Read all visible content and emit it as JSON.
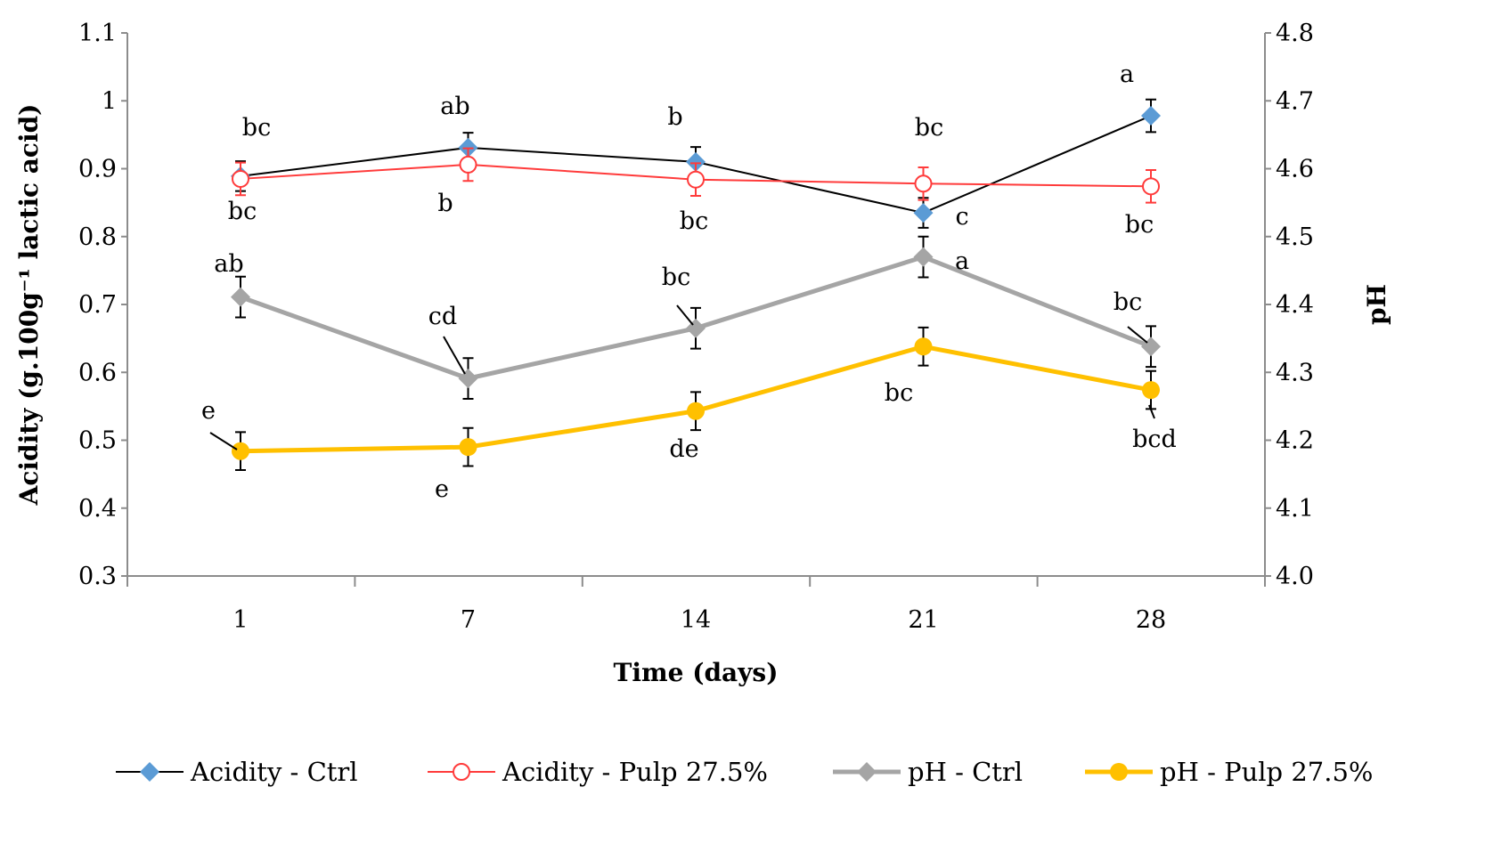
{
  "chart_data": {
    "type": "line",
    "xlabel": "Time (days)",
    "ylabel": "Acidity (g.100g⁻¹ lactic acid)",
    "y2label": "pH",
    "categories": [
      "1",
      "7",
      "14",
      "21",
      "28"
    ],
    "ylim": [
      0.3,
      1.1
    ],
    "yticks": [
      "0.3",
      "0.4",
      "0.5",
      "0.6",
      "0.7",
      "0.8",
      "0.9",
      "1",
      "1.1"
    ],
    "y2lim": [
      4.0,
      4.8
    ],
    "y2ticks": [
      "4.0",
      "4.1",
      "4.2",
      "4.3",
      "4.4",
      "4.5",
      "4.6",
      "4.7",
      "4.8"
    ],
    "grid": false,
    "legend_position": "bottom",
    "series": [
      {
        "name": "Acidity - Ctrl",
        "axis": "left",
        "color": "#000000",
        "marker_color": "#5b9bd5",
        "marker": "diamond",
        "values": [
          0.889,
          0.931,
          0.91,
          0.835,
          0.978
        ],
        "errors": [
          0.022,
          0.022,
          0.022,
          0.022,
          0.024
        ],
        "letters": [
          "bc",
          "ab",
          "b",
          "bc",
          "a"
        ]
      },
      {
        "name": "Acidity - Pulp 27.5%",
        "axis": "left",
        "color": "#ff3b3b",
        "marker_color": "#ff3b3b",
        "marker": "open-circle",
        "values": [
          0.885,
          0.906,
          0.884,
          0.878,
          0.874
        ],
        "errors": [
          0.024,
          0.024,
          0.024,
          0.024,
          0.024
        ],
        "letters": [
          "bc",
          "b",
          "bc",
          "c",
          "bc"
        ]
      },
      {
        "name": "pH - Ctrl",
        "axis": "right",
        "color": "#a5a5a5",
        "marker_color": "#a5a5a5",
        "marker": "diamond",
        "values": [
          4.411,
          4.291,
          4.365,
          4.47,
          4.338
        ],
        "errors": [
          0.03,
          0.03,
          0.03,
          0.03,
          0.03
        ],
        "letters": [
          "ab",
          "cd",
          "bc",
          "a",
          "bc"
        ]
      },
      {
        "name": "pH - Pulp 27.5%",
        "axis": "right",
        "color": "#ffc000",
        "marker_color": "#ffc000",
        "marker": "circle",
        "values": [
          4.184,
          4.19,
          4.243,
          4.338,
          4.274
        ],
        "errors": [
          0.028,
          0.028,
          0.028,
          0.028,
          0.028
        ],
        "letters": [
          "e",
          "e",
          "de",
          "bc",
          "bcd"
        ]
      }
    ]
  }
}
